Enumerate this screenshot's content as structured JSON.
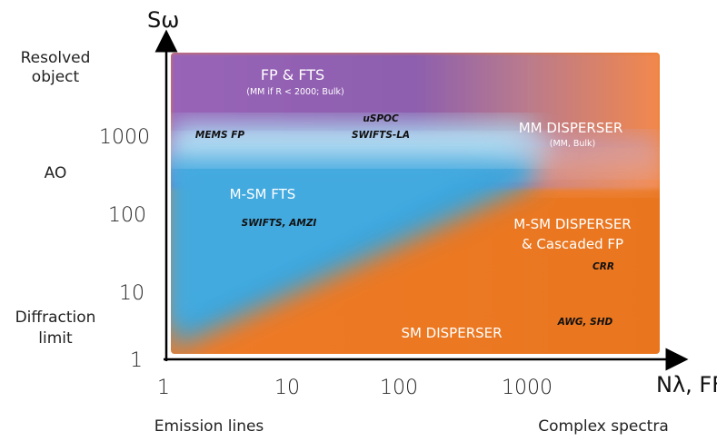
{
  "axes": {
    "y_name": "Sω",
    "x_name": "Nλ, FF",
    "y_ticks": [
      "1",
      "10",
      "100",
      "1000"
    ],
    "x_ticks": [
      "1",
      "10",
      "100",
      "1000"
    ]
  },
  "left_labels": {
    "resolved_1": "Resolved",
    "resolved_2": "object",
    "ao": "AO",
    "diffraction_1": "Diffraction",
    "diffraction_2": "limit"
  },
  "bottom_labels": {
    "emission": "Emission lines",
    "complex": "Complex spectra"
  },
  "regions": {
    "fp_fts": "FP & FTS",
    "fp_fts_sub": "(MM if R < 2000; Bulk)",
    "mm_disperser": "MM DISPERSER",
    "mm_disperser_sub": "(MM, Bulk)",
    "msm_fts": "M-SM FTS",
    "msm_disperser_1": "M-SM DISPERSER",
    "msm_disperser_2": "& Cascaded FP",
    "sm_disperser": "SM DISPERSER"
  },
  "instruments": {
    "mems_fp": "MEMS FP",
    "uspoc": "uSPOC",
    "swifts_la": "SWIFTS-LA",
    "swifts_amzi": "SWIFTS, AMZI",
    "crr": "CRR",
    "awg_shd": "AWG, SHD"
  },
  "colors": {
    "purple": "#8e5fae",
    "blue": "#3aa6dc",
    "light_blue": "#b8dff2",
    "orange": "#ee7b2c",
    "coral": "#f08a5a"
  }
}
